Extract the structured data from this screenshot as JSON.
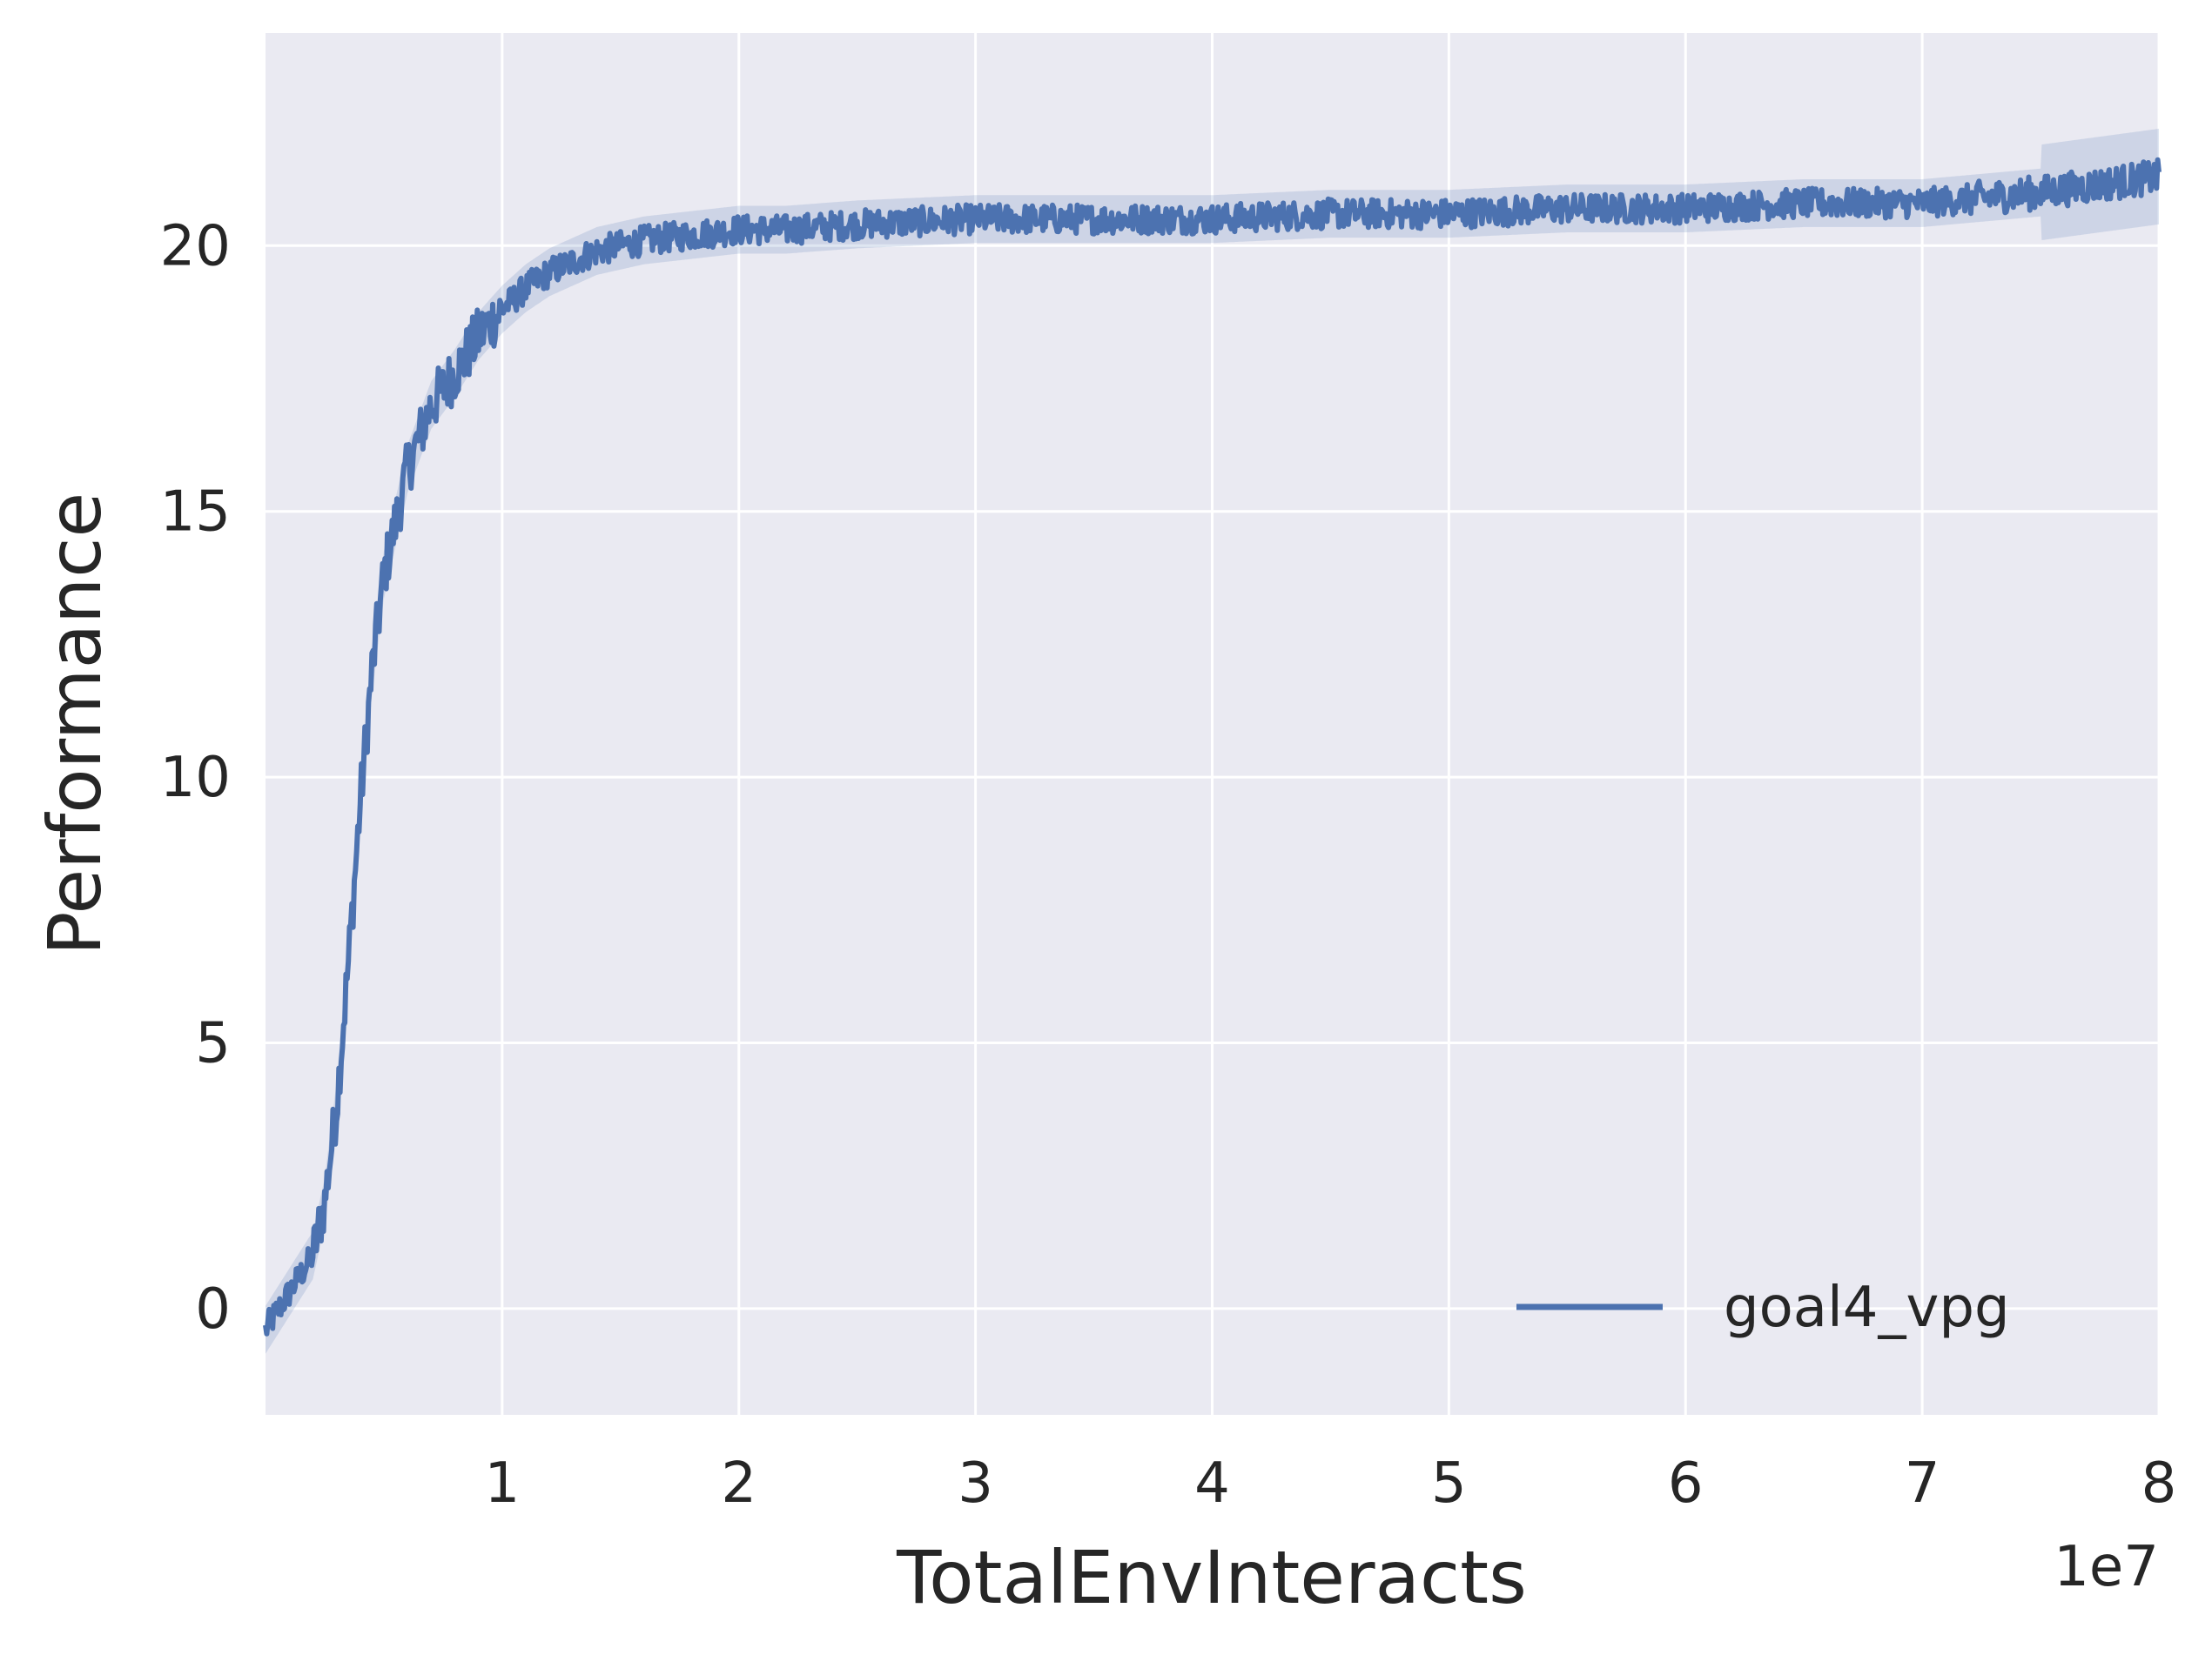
{
  "chart_data": {
    "type": "line",
    "title": "",
    "xlabel": "TotalEnvInteracts",
    "ylabel": "Performance",
    "x_offset_label": "1e7",
    "xlim": [
      0.0,
      8.0
    ],
    "ylim": [
      -2.0,
      24.0
    ],
    "x_ticks": [
      1,
      2,
      3,
      4,
      5,
      6,
      7,
      8
    ],
    "x_tick_labels": [
      "1",
      "2",
      "3",
      "4",
      "5",
      "6",
      "7",
      "8"
    ],
    "y_ticks": [
      0,
      5,
      10,
      15,
      20
    ],
    "y_tick_labels": [
      "0",
      "5",
      "10",
      "15",
      "20"
    ],
    "grid": true,
    "background_color": "#eaeaf2",
    "legend_position": "lower-right",
    "series": [
      {
        "name": "goal4_vpg",
        "color": "#4c72b0",
        "x": [
          0.0,
          0.1,
          0.2,
          0.25,
          0.3,
          0.35,
          0.4,
          0.45,
          0.5,
          0.55,
          0.6,
          0.65,
          0.7,
          0.8,
          0.9,
          1.0,
          1.1,
          1.2,
          1.3,
          1.4,
          1.5,
          1.6,
          1.8,
          2.0,
          2.2,
          2.5,
          3.0,
          3.5,
          4.0,
          4.5,
          5.0,
          5.5,
          6.0,
          6.5,
          7.0,
          7.5,
          8.0
        ],
        "y": [
          -0.4,
          0.3,
          1.0,
          2.0,
          3.8,
          6.5,
          9.5,
          12.0,
          13.8,
          14.8,
          15.8,
          16.4,
          17.0,
          17.6,
          18.3,
          18.8,
          19.2,
          19.5,
          19.7,
          19.9,
          20.0,
          20.1,
          20.2,
          20.3,
          20.3,
          20.4,
          20.5,
          20.5,
          20.5,
          20.6,
          20.6,
          20.7,
          20.7,
          20.8,
          20.8,
          21.0,
          21.3
        ]
      }
    ]
  }
}
